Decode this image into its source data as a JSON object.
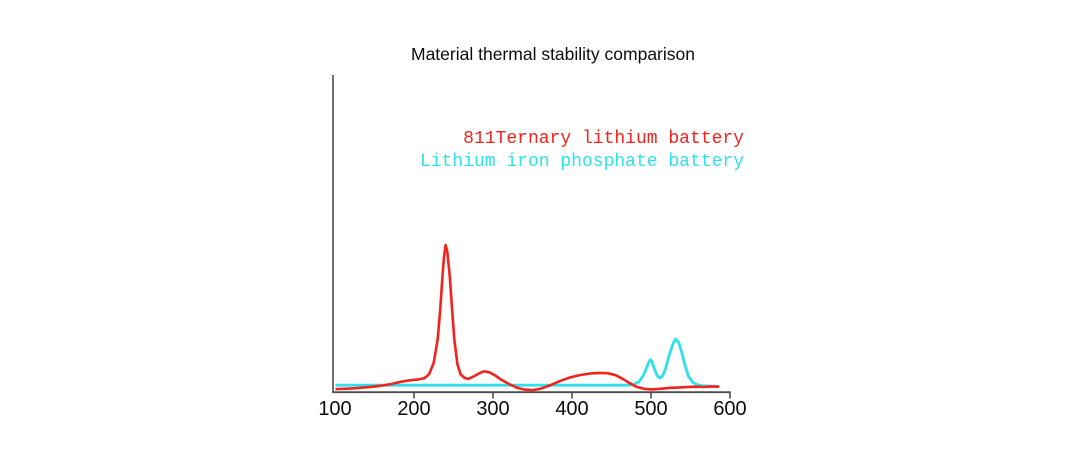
{
  "page": {
    "background": "#ffffff"
  },
  "chart_data": {
    "type": "line",
    "title": "Material thermal stability comparison",
    "xlabel": "",
    "ylabel": "",
    "xlim": [
      100,
      600
    ],
    "ylim": [
      0,
      215
    ],
    "y_units": "arbitrary (no y-axis ticks shown; 100 = tallest red peak)",
    "xticks": [
      "100",
      "200",
      "300",
      "400",
      "500",
      "600"
    ],
    "grid": false,
    "legend_position": "upper-right",
    "axis_color": "#4d4d4d",
    "text_color": "#0d0d0d",
    "series": [
      {
        "name": "Lithium iron phosphate battery",
        "color": "#2ee2ec",
        "points": [
          [
            102,
            4.6
          ],
          [
            130,
            4.6
          ],
          [
            160,
            4.6
          ],
          [
            190,
            4.6
          ],
          [
            220,
            4.6
          ],
          [
            250,
            4.6
          ],
          [
            280,
            4.6
          ],
          [
            310,
            4.6
          ],
          [
            340,
            4.6
          ],
          [
            370,
            4.6
          ],
          [
            400,
            4.6
          ],
          [
            430,
            4.6
          ],
          [
            455,
            4.6
          ],
          [
            470,
            4.6
          ],
          [
            478,
            5
          ],
          [
            485,
            7
          ],
          [
            490,
            11
          ],
          [
            494,
            16
          ],
          [
            497,
            20
          ],
          [
            499,
            22
          ],
          [
            501,
            21
          ],
          [
            504,
            16
          ],
          [
            508,
            11
          ],
          [
            511,
            9.5
          ],
          [
            514,
            10.5
          ],
          [
            518,
            15
          ],
          [
            523,
            25
          ],
          [
            528,
            33
          ],
          [
            531,
            36
          ],
          [
            535,
            34
          ],
          [
            539,
            27
          ],
          [
            543,
            18
          ],
          [
            548,
            10
          ],
          [
            553,
            6.5
          ],
          [
            558,
            5
          ],
          [
            565,
            4.2
          ],
          [
            575,
            4
          ],
          [
            585,
            3.9
          ]
        ]
      },
      {
        "name": "811Ternary lithium battery",
        "color": "#f2231d",
        "points": [
          [
            102,
            2
          ],
          [
            112,
            2.2
          ],
          [
            124,
            2.5
          ],
          [
            136,
            3
          ],
          [
            148,
            3.6
          ],
          [
            160,
            4.4
          ],
          [
            172,
            5.5
          ],
          [
            184,
            7
          ],
          [
            196,
            8
          ],
          [
            206,
            8.6
          ],
          [
            213,
            9.4
          ],
          [
            219,
            12
          ],
          [
            225,
            20
          ],
          [
            230,
            36
          ],
          [
            233,
            55
          ],
          [
            236,
            78
          ],
          [
            238,
            92
          ],
          [
            240,
            100
          ],
          [
            242,
            96
          ],
          [
            245,
            80
          ],
          [
            248,
            58
          ],
          [
            251,
            36
          ],
          [
            255,
            19
          ],
          [
            259,
            12
          ],
          [
            264,
            9.5
          ],
          [
            269,
            9
          ],
          [
            275,
            10.5
          ],
          [
            282,
            12.5
          ],
          [
            288,
            14
          ],
          [
            295,
            13.5
          ],
          [
            302,
            11.5
          ],
          [
            310,
            8.5
          ],
          [
            320,
            5.5
          ],
          [
            330,
            3
          ],
          [
            340,
            1.6
          ],
          [
            350,
            1.3
          ],
          [
            360,
            2.2
          ],
          [
            372,
            4.5
          ],
          [
            385,
            7.5
          ],
          [
            398,
            10
          ],
          [
            410,
            11.5
          ],
          [
            422,
            12.5
          ],
          [
            434,
            13
          ],
          [
            445,
            12.8
          ],
          [
            455,
            11.5
          ],
          [
            464,
            9
          ],
          [
            473,
            6
          ],
          [
            482,
            3.5
          ],
          [
            491,
            2.2
          ],
          [
            501,
            1.8
          ],
          [
            512,
            2.2
          ],
          [
            523,
            2.8
          ],
          [
            534,
            3
          ],
          [
            545,
            3.3
          ],
          [
            556,
            3.6
          ],
          [
            567,
            3.4
          ],
          [
            576,
            3.8
          ],
          [
            585,
            3.6
          ]
        ]
      }
    ]
  }
}
